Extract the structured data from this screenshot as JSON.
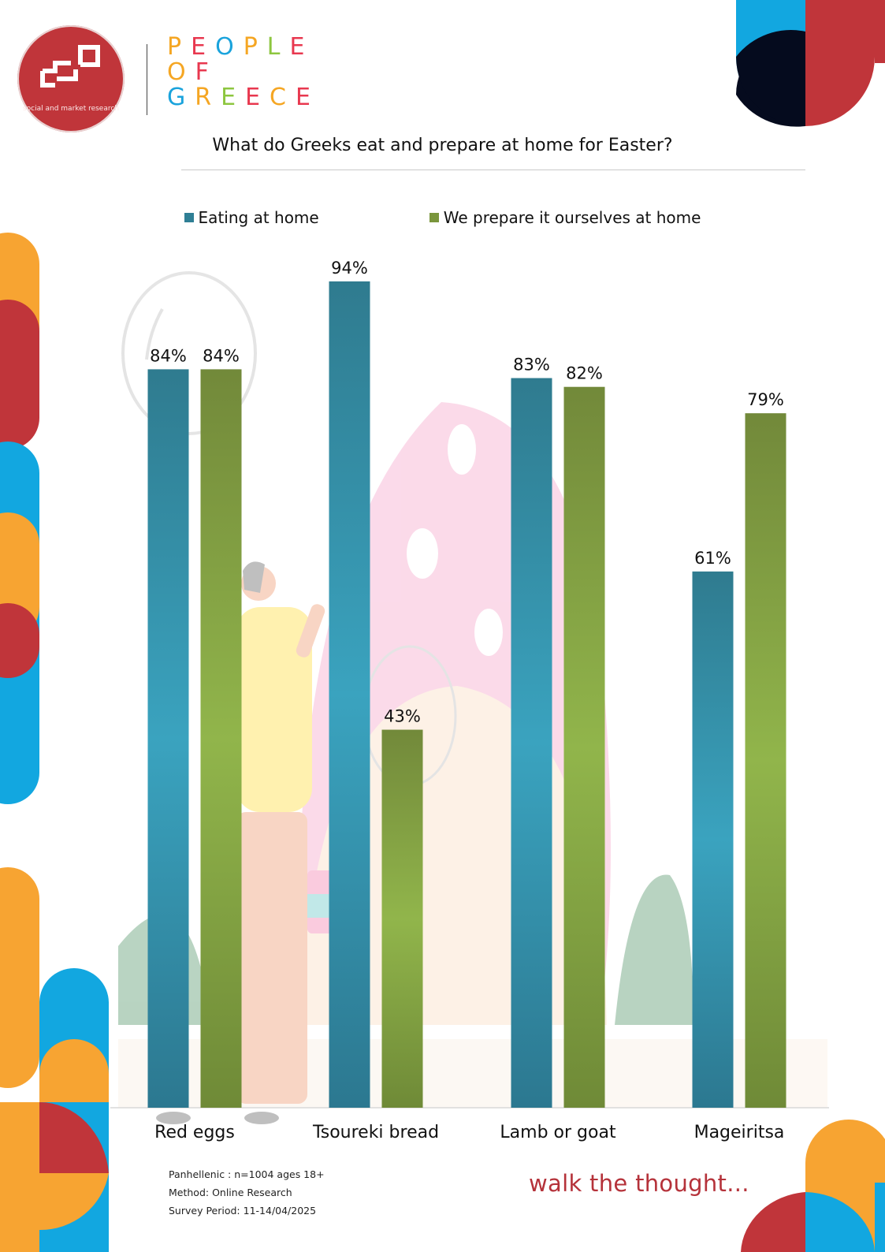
{
  "header": {
    "logo_caption": "social and market research",
    "brand_lines": [
      "PEOPLE",
      "OF",
      "GREECE"
    ],
    "brand_colors": [
      "#f5a623",
      "#e8384f",
      "#1aa3dc",
      "#f5a623",
      "#8dc63f",
      "#e8384f"
    ]
  },
  "chart_data": {
    "type": "bar",
    "title": "What do Greeks eat and prepare at home for Easter?",
    "categories": [
      "Red eggs",
      "Tsoureki bread",
      "Lamb or goat",
      "Mageiritsa"
    ],
    "series": [
      {
        "name": "Eating at home",
        "values": [
          84,
          94,
          83,
          61
        ],
        "labels": [
          "84%",
          "94%",
          "83%",
          "61%"
        ],
        "color": "#2f7f95"
      },
      {
        "name": "We prepare it ourselves at home",
        "values": [
          84,
          43,
          82,
          79
        ],
        "labels": [
          "84%",
          "43%",
          "82%",
          "79%"
        ],
        "color": "#7a963c"
      }
    ],
    "ylim": [
      0,
      100
    ],
    "unit": "%",
    "grid": false,
    "legend": "top-center"
  },
  "footer": {
    "notes": [
      "Panhellenic : n=1004 ages 18+",
      "Method: Online Research",
      "Survey Period: 11-14/04/2025"
    ],
    "slogan": "walk the thought..."
  },
  "colors": {
    "brand_red": "#c0353a",
    "brand_blue": "#12a7e0",
    "brand_orange": "#f7a432",
    "brand_navy": "#050b1e"
  },
  "icons": [
    "egg-outline-icon",
    "person-painting-egg-illustration",
    "logo-icon"
  ]
}
